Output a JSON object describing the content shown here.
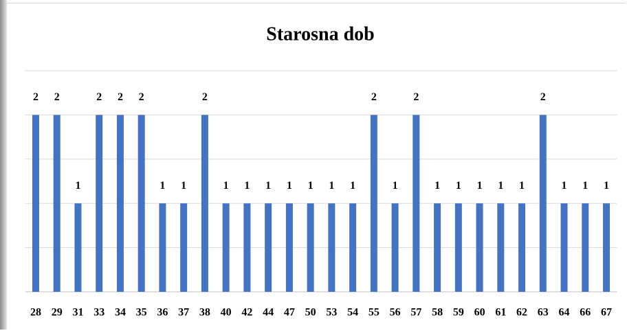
{
  "chart_data": {
    "type": "bar",
    "title": "Starosna dob",
    "categories": [
      "28",
      "29",
      "31",
      "33",
      "34",
      "35",
      "36",
      "37",
      "38",
      "40",
      "42",
      "44",
      "47",
      "50",
      "53",
      "54",
      "55",
      "56",
      "57",
      "58",
      "59",
      "60",
      "61",
      "62",
      "63",
      "64",
      "66",
      "67"
    ],
    "values": [
      2,
      2,
      1,
      2,
      2,
      2,
      1,
      1,
      2,
      1,
      1,
      1,
      1,
      1,
      1,
      1,
      2,
      1,
      2,
      1,
      1,
      1,
      1,
      1,
      2,
      1,
      1,
      1
    ],
    "color": "#4472c4",
    "ylim": [
      0,
      2.5
    ],
    "yticks": [
      0,
      0.5,
      1,
      1.5,
      2,
      2.5
    ],
    "grid": true
  }
}
